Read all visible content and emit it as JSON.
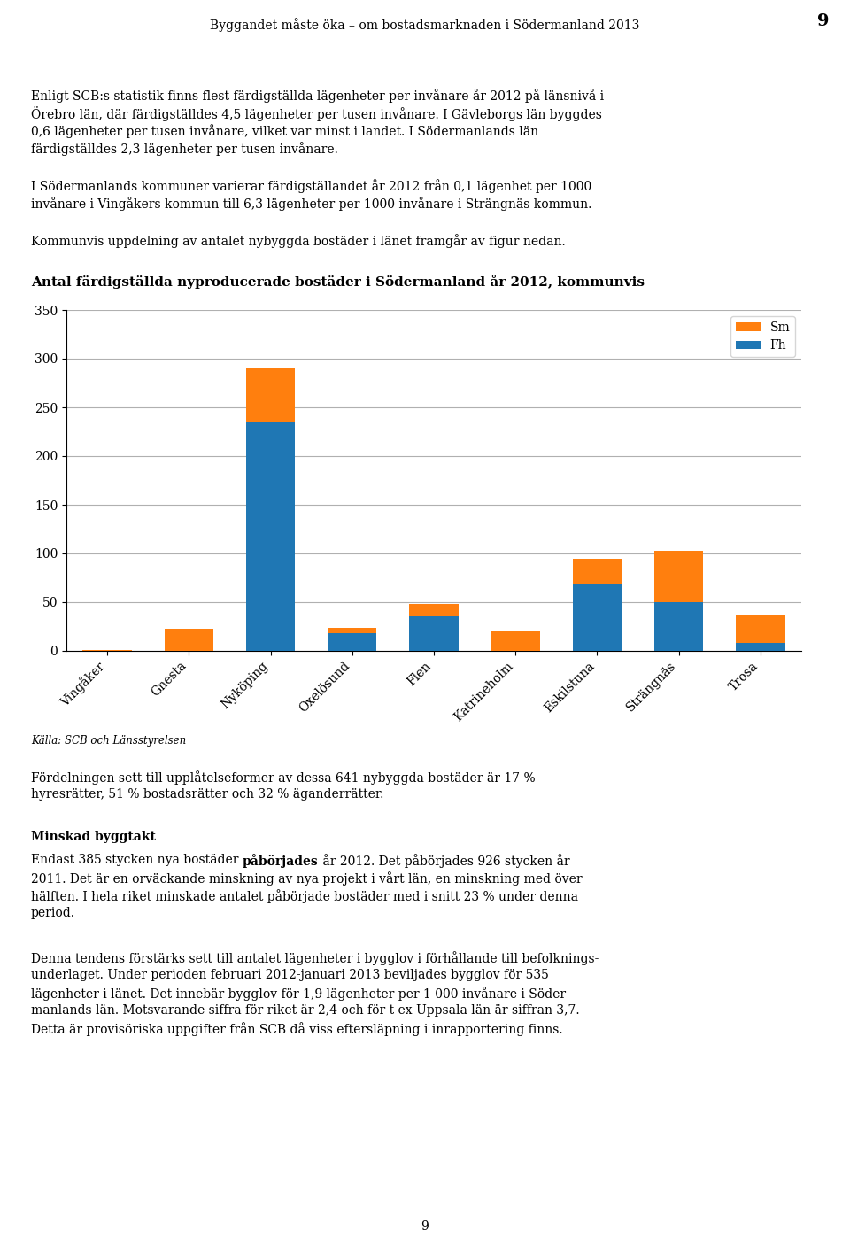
{
  "chart_data": {
    "type": "bar",
    "title": "Antal färdigställda nyproducerade bostäder i Södermanland år 2012, kommunvis",
    "categories": [
      "Vingåker",
      "Gnesta",
      "Nyköping",
      "Oxelösund",
      "Flen",
      "Katrineholm",
      "Eskilstuna",
      "Strängnäs",
      "Trosa"
    ],
    "series": [
      {
        "name": "Fh",
        "values": [
          0,
          0,
          235,
          18,
          35,
          0,
          68,
          50,
          8
        ]
      },
      {
        "name": "Sm",
        "values": [
          1,
          23,
          55,
          6,
          13,
          21,
          27,
          53,
          28
        ]
      }
    ],
    "stacked": true,
    "ylim": [
      0,
      350
    ],
    "yticks": [
      0,
      50,
      100,
      150,
      200,
      250,
      300,
      350
    ],
    "grid": true,
    "legend": "upper right",
    "annotations": [
      [
        "Byggandet måste öka – om bostadsmarknaden i Södermanland 2013"
      ],
      [
        "9"
      ],
      [
        "Enligt SCB:s statistik finns flest färdigställda lägenheter per invånare år 2012 på länsnivå i",
        "Örebro län, där färdigställdes 4,5 lägenheter per tusen invånare. I Gävleborgs län byggdes",
        "0,6 lägenheter per tusen invånare, vilket var minst i landet. I Södermanlands län",
        "färdigställdes 2,3 lägenheter per tusen invånare."
      ],
      [
        "I Södermanlands kommuner varierar färdigställandet år 2012 från 0,1 lägenhet per 1000",
        "invånare i Vingåkers kommun till 6,3 lägenheter per 1000 invånare i Strängnäs kommun."
      ],
      [
        "Kommunvis uppdelning av antalet nybyggda bostäder i länet framgår av figur nedan."
      ],
      [
        "Källa: SCB och Länsstyrelsen"
      ],
      [
        "Fördelningen sett till upplåtelseformer av dessa 641 nybyggda bostäder är 17 %",
        "hyresrätter, 51 % bostadsrätter och 32 % äganderrätter."
      ],
      [
        "Minskad byggtakt"
      ],
      [
        "Endast 385 stycken nya bostäder ",
        "påbörjades",
        " år 2012. Det påbörjades 926 stycken år"
      ],
      [
        "2011. Det är en orväckande minskning av nya projekt i vårt län, en minskning med över",
        "hälften. I hela riket minskade antalet påbörjade bostäder med i snitt 23 % under denna",
        "period."
      ],
      [
        "Denna tendens förstärks sett till antalet lägenheter i bygglov i förhållande till befolknings-",
        "underlaget. Under perioden februari 2012-januari 2013 beviljades bygglov för 535",
        "lägenheter i länet. Det innebär bygglov för 1,9 lägenheter per 1 000 invånare i Söder-",
        "manlands län. Motsvarande siffra för riket är 2,4 och för t ex Uppsala län är siffran 3,7.",
        "Detta är provisöriska uppgifter från SCB då viss eftersläpning i inrapportering finns."
      ],
      [
        "9"
      ]
    ]
  }
}
